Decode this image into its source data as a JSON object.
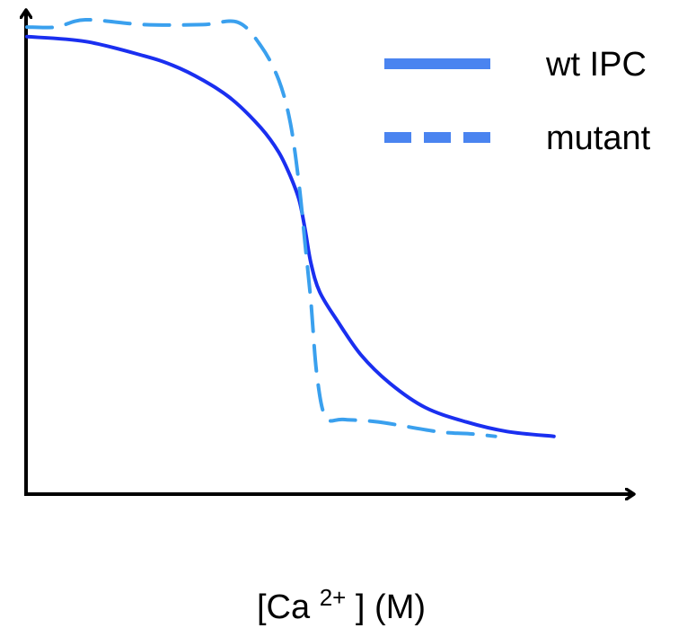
{
  "chart_data": {
    "type": "line",
    "title": "",
    "xlabel": {
      "prefix": "[Ca",
      "superscript": "2+",
      "suffix": "] (M)"
    },
    "ylabel": "",
    "xlim": [
      0,
      10
    ],
    "ylim": [
      0,
      1
    ],
    "grid": false,
    "legend_placement": "top-right",
    "series": [
      {
        "name": "wt IPC",
        "style": "solid",
        "color": "#1a2ff0",
        "x": [
          0,
          1,
          2,
          2.5,
          3,
          3.5,
          4,
          4.3,
          4.5,
          4.65,
          4.75,
          4.85,
          5,
          5.3,
          5.7,
          6.2,
          6.8,
          7.5,
          8.2,
          9
        ],
        "y": [
          0.95,
          0.94,
          0.91,
          0.89,
          0.86,
          0.82,
          0.76,
          0.71,
          0.66,
          0.61,
          0.55,
          0.48,
          0.42,
          0.36,
          0.29,
          0.23,
          0.18,
          0.15,
          0.13,
          0.12
        ]
      },
      {
        "name": "mutant",
        "style": "dashed",
        "color": "#3aa0ee",
        "x": [
          0,
          0.5,
          1,
          2,
          3,
          3.6,
          4,
          4.3,
          4.5,
          4.65,
          4.75,
          4.85,
          4.95,
          5.1,
          5.4,
          6,
          7,
          7.6,
          8
        ],
        "y": [
          0.97,
          0.97,
          0.985,
          0.975,
          0.975,
          0.98,
          0.93,
          0.86,
          0.77,
          0.64,
          0.52,
          0.4,
          0.25,
          0.16,
          0.155,
          0.15,
          0.13,
          0.125,
          0.12
        ]
      }
    ]
  }
}
